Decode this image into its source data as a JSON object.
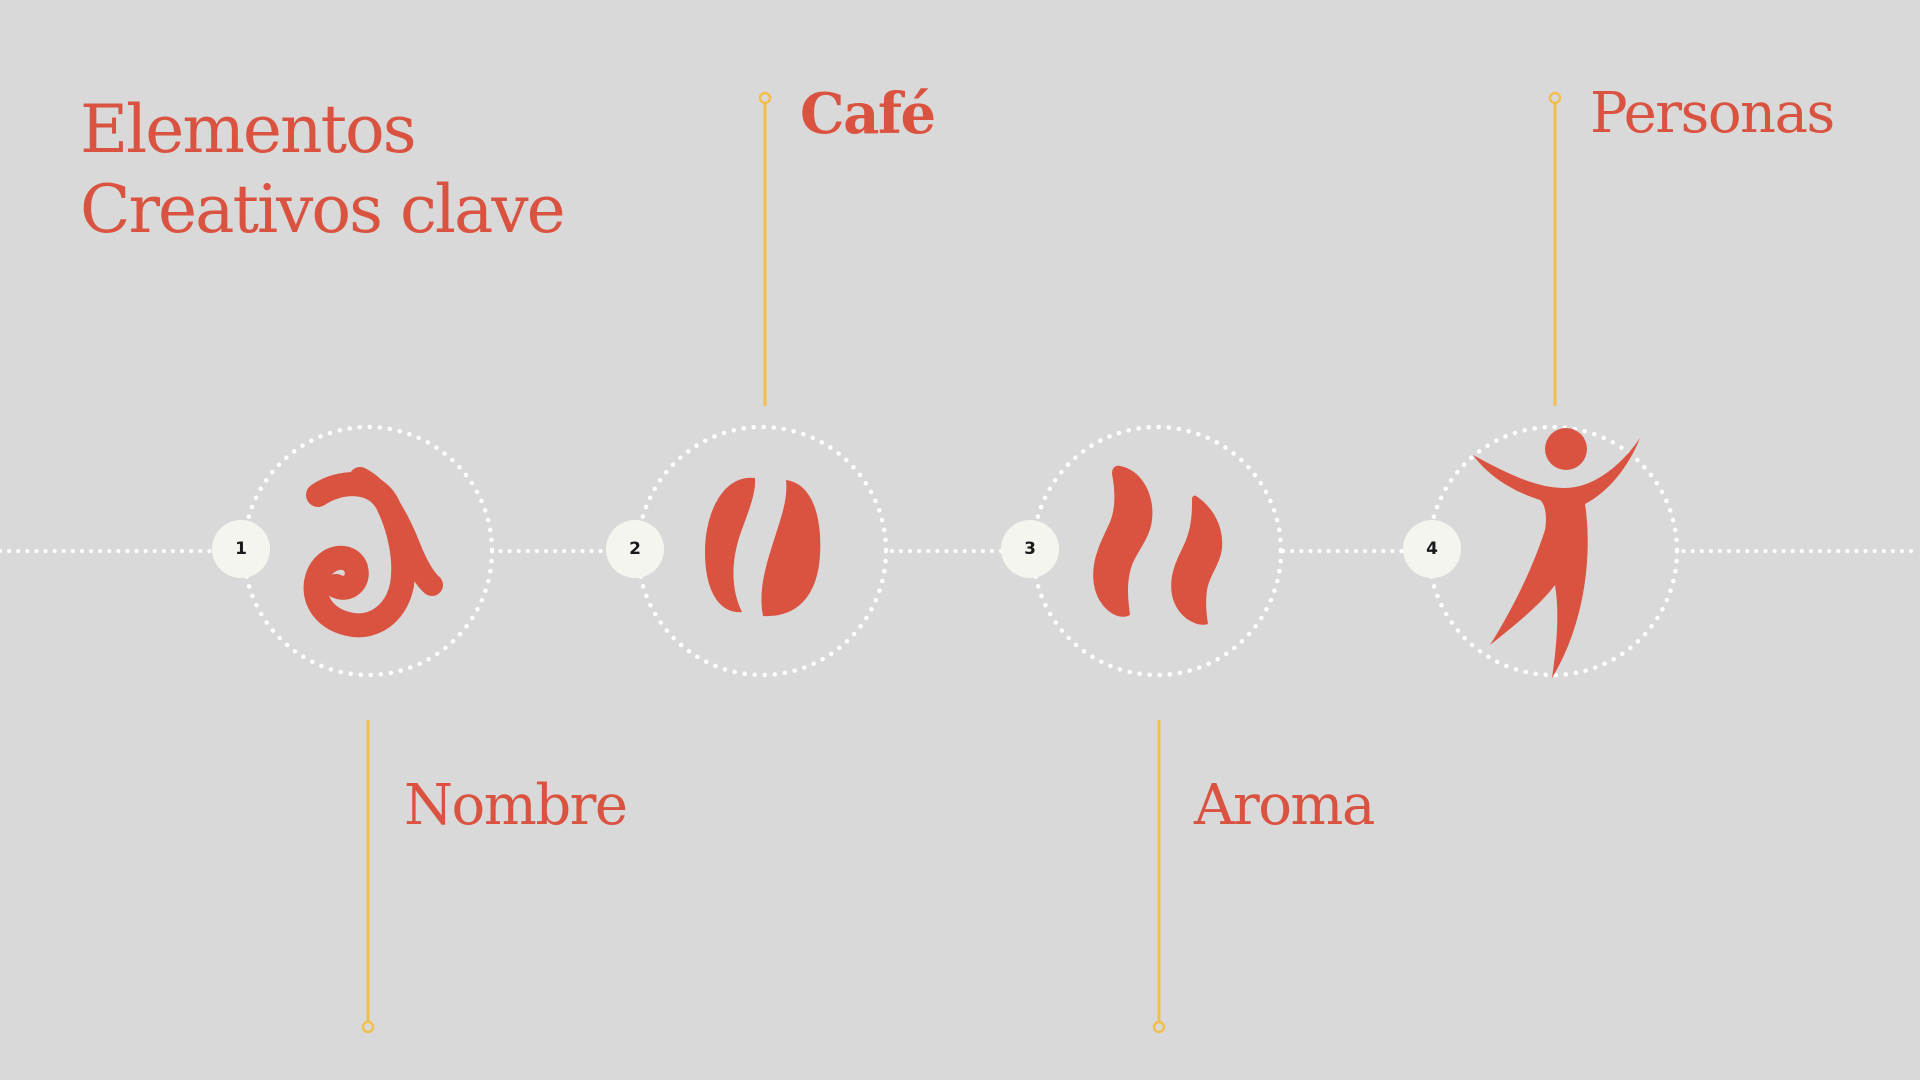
{
  "title": {
    "line1": "Elementos",
    "line2": "Creativos clave"
  },
  "colors": {
    "background": "#d9d9d9",
    "accent": "#d95340",
    "connector": "#f2bf4d",
    "dots": "#ffffff",
    "badge": "#f5f5f0",
    "badge_text": "#1a1a1a"
  },
  "elements": [
    {
      "number": "1",
      "label": "Nombre",
      "icon": "letter-a-icon"
    },
    {
      "number": "2",
      "label": "Café",
      "icon": "coffee-bean-icon"
    },
    {
      "number": "3",
      "label": "Aroma",
      "icon": "aroma-steam-icon"
    },
    {
      "number": "4",
      "label": "Personas",
      "icon": "person-icon"
    }
  ]
}
